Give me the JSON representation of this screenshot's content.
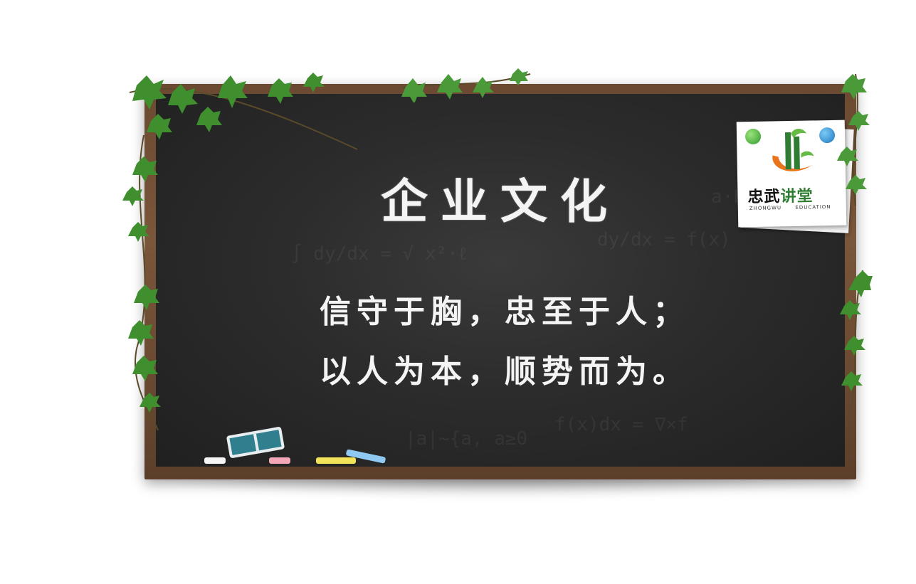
{
  "board": {
    "title": "企业文化",
    "line1": "信守于胸，忠至于人；",
    "line2": "以人为本，顺势而为。"
  },
  "logo": {
    "name_cn_black": "忠武",
    "name_cn_green": "讲堂",
    "sub_left": "ZHONGWU",
    "sub_right": "EDUCATION"
  },
  "colors": {
    "board": "#2c2c2c",
    "frame": "#6b4a31",
    "chalk_text": "#f4f4f4",
    "leaf": "#3f8f2f",
    "logo_green": "#2e7d32",
    "logo_orange": "#e8741e"
  },
  "icons": [
    "ivy-vine-icon",
    "eraser-icon",
    "chalk-icon",
    "pin-icon"
  ]
}
